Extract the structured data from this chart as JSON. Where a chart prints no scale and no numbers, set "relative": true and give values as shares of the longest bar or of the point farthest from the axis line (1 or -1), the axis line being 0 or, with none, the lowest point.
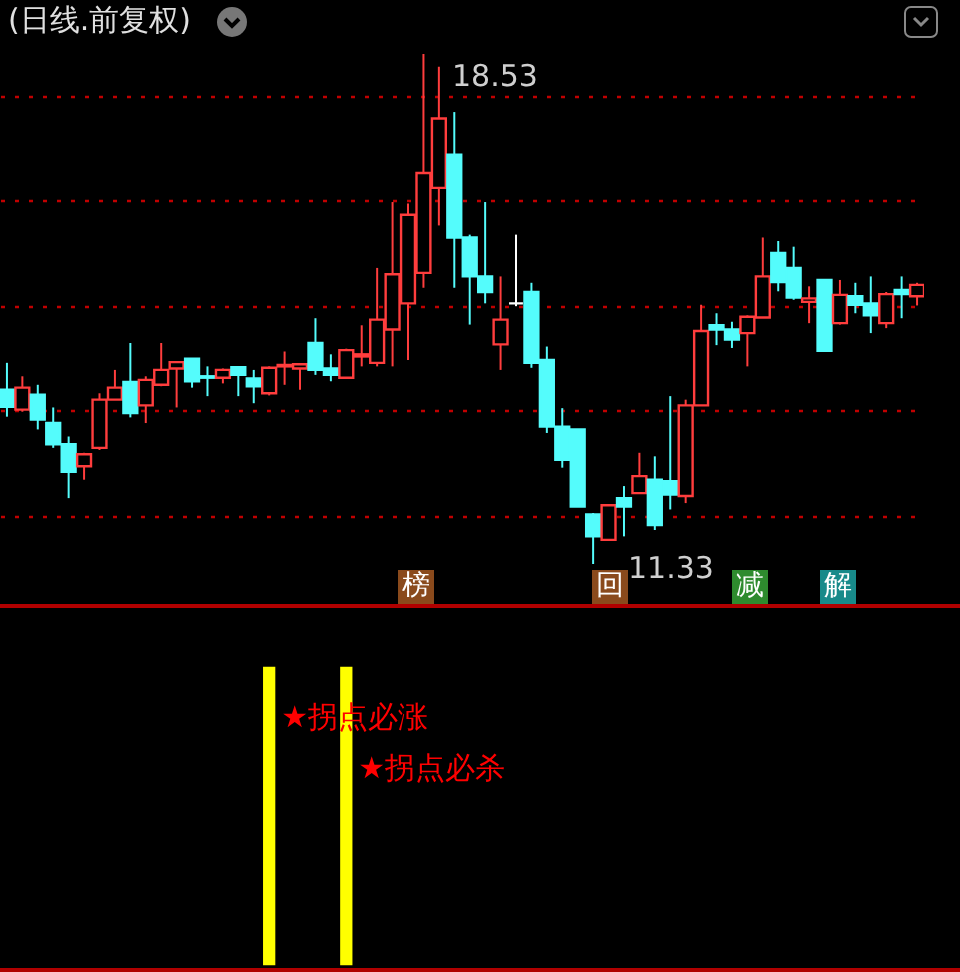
{
  "chart_data": [
    {
      "type": "candlestick",
      "title": "(日线.前复权)",
      "categories": [
        null,
        null,
        null,
        null,
        null,
        null,
        null,
        null,
        null,
        null,
        null,
        null,
        null,
        null,
        null,
        null,
        null,
        null,
        null,
        null,
        null,
        null,
        null,
        null,
        null,
        null,
        null,
        null,
        null,
        null,
        null,
        null,
        null,
        null,
        null,
        null,
        null,
        null,
        null,
        null,
        null,
        null,
        null,
        null,
        null,
        null,
        null,
        null,
        null,
        null,
        null,
        null,
        null,
        null,
        null,
        null,
        null,
        null,
        null,
        null
      ],
      "ohlc": [
        [
          13.79,
          14.17,
          13.41,
          13.55
        ],
        [
          13.51,
          13.98,
          13.48,
          13.82
        ],
        [
          13.72,
          13.86,
          13.23,
          13.37
        ],
        [
          13.32,
          13.54,
          12.97,
          13.02
        ],
        [
          13.02,
          13.13,
          12.26,
          12.63
        ],
        [
          12.71,
          12.9,
          12.52,
          12.88
        ],
        [
          12.97,
          13.74,
          12.94,
          13.65
        ],
        [
          13.65,
          14.07,
          13.65,
          13.82
        ],
        [
          13.9,
          14.45,
          13.4,
          13.46
        ],
        [
          13.57,
          13.98,
          13.32,
          13.93
        ],
        [
          13.86,
          14.45,
          13.84,
          14.07
        ],
        [
          14.09,
          14.19,
          13.54,
          14.18
        ],
        [
          14.23,
          14.23,
          13.82,
          13.91
        ],
        [
          13.98,
          14.12,
          13.7,
          13.96
        ],
        [
          13.96,
          14.09,
          13.88,
          14.07
        ],
        [
          14.11,
          14.12,
          13.7,
          14.0
        ],
        [
          13.95,
          14.07,
          13.6,
          13.84
        ],
        [
          13.74,
          14.12,
          13.71,
          14.1
        ],
        [
          14.12,
          14.33,
          13.86,
          14.14
        ],
        [
          14.09,
          14.15,
          13.79,
          14.15
        ],
        [
          14.45,
          14.8,
          14.0,
          14.07
        ],
        [
          14.09,
          14.29,
          13.91,
          14.0
        ],
        [
          13.96,
          14.37,
          13.96,
          14.35
        ],
        [
          14.26,
          14.7,
          14.12,
          14.29
        ],
        [
          14.17,
          15.51,
          14.12,
          14.78
        ],
        [
          14.64,
          16.44,
          14.12,
          15.42
        ],
        [
          15.01,
          16.42,
          14.21,
          16.26
        ],
        [
          15.44,
          18.53,
          15.23,
          16.85
        ],
        [
          16.64,
          18.35,
          16.11,
          17.62
        ],
        [
          17.11,
          17.71,
          15.23,
          15.94
        ],
        [
          15.94,
          15.98,
          14.71,
          15.39
        ],
        [
          15.39,
          16.44,
          15.01,
          15.17
        ],
        [
          14.43,
          15.39,
          14.07,
          14.78
        ],
        [
          15.01,
          15.98,
          14.97,
          15.01
        ],
        [
          15.17,
          15.3,
          14.1,
          14.17
        ],
        [
          14.21,
          14.4,
          13.18,
          13.27
        ],
        [
          13.27,
          13.53,
          12.69,
          12.8
        ],
        [
          13.23,
          13.23,
          12.14,
          12.14
        ],
        [
          12.03,
          12.05,
          11.33,
          11.72
        ],
        [
          11.67,
          12.16,
          11.67,
          12.16
        ],
        [
          12.26,
          12.43,
          11.72,
          12.14
        ],
        [
          12.33,
          12.9,
          12.33,
          12.57
        ],
        [
          12.52,
          12.85,
          11.81,
          11.88
        ],
        [
          12.5,
          13.7,
          12.1,
          12.31
        ],
        [
          12.29,
          13.65,
          12.19,
          13.57
        ],
        [
          13.57,
          14.99,
          13.57,
          14.62
        ],
        [
          14.7,
          14.87,
          14.42,
          14.64
        ],
        [
          14.64,
          14.75,
          14.38,
          14.5
        ],
        [
          14.59,
          14.84,
          14.12,
          14.82
        ],
        [
          14.81,
          15.94,
          14.81,
          15.39
        ],
        [
          15.72,
          15.89,
          15.18,
          15.31
        ],
        [
          15.51,
          15.81,
          15.06,
          15.09
        ],
        [
          15.03,
          15.25,
          14.73,
          15.08
        ],
        [
          15.34,
          15.34,
          14.34,
          14.34
        ],
        [
          14.73,
          15.34,
          14.71,
          15.13
        ],
        [
          15.11,
          15.3,
          14.87,
          14.99
        ],
        [
          15.01,
          15.39,
          14.59,
          14.84
        ],
        [
          14.73,
          15.17,
          14.66,
          15.14
        ],
        [
          15.2,
          15.39,
          14.8,
          15.14
        ],
        [
          15.11,
          15.3,
          14.98,
          15.27
        ]
      ],
      "colors": [
        "#54fcfc",
        "#ff3d3d",
        "#54fcfc",
        "#54fcfc",
        "#54fcfc",
        "#ff3d3d",
        "#ff3d3d",
        "#ff3d3d",
        "#54fcfc",
        "#ff3d3d",
        "#ff3d3d",
        "#ff3d3d",
        "#54fcfc",
        "#54fcfc",
        "#ff3d3d",
        "#54fcfc",
        "#54fcfc",
        "#ff3d3d",
        "#ff3d3d",
        "#ff3d3d",
        "#54fcfc",
        "#54fcfc",
        "#ff3d3d",
        "#ff3d3d",
        "#ff3d3d",
        "#ff3d3d",
        "#ff3d3d",
        "#ff3d3d",
        "#ff3d3d",
        "#54fcfc",
        "#54fcfc",
        "#54fcfc",
        "#ff3d3d",
        "#ffffff",
        "#54fcfc",
        "#54fcfc",
        "#54fcfc",
        "#54fcfc",
        "#54fcfc",
        "#ff3d3d",
        "#54fcfc",
        "#ff3d3d",
        "#54fcfc",
        "#54fcfc",
        "#ff3d3d",
        "#ff3d3d",
        "#54fcfc",
        "#54fcfc",
        "#ff3d3d",
        "#ff3d3d",
        "#54fcfc",
        "#54fcfc",
        "#ff3d3d",
        "#54fcfc",
        "#ff3d3d",
        "#54fcfc",
        "#54fcfc",
        "#ff3d3d",
        "#54fcfc",
        "#ff3d3d"
      ],
      "yticks": [
        {
          "value": 12.01,
          "label": null
        },
        {
          "value": 13.5,
          "label": null
        },
        {
          "value": 14.97,
          "label": null
        },
        {
          "value": 16.47,
          "label": null
        },
        {
          "value": 17.94,
          "label": null
        }
      ],
      "grid": "y",
      "tick_labels": false,
      "annotations": [
        "18.53",
        "11.33",
        "榜",
        "回",
        "减",
        "解"
      ]
    },
    {
      "type": "bar",
      "relative": true,
      "color": "#ffff00",
      "tick_labels": false,
      "categories": [
        null,
        null,
        null,
        null,
        null,
        null,
        null,
        null,
        null,
        null,
        null,
        null,
        null,
        null,
        null,
        null,
        null,
        null,
        null,
        null,
        null,
        null,
        null,
        null,
        null,
        null,
        null,
        null,
        null,
        null,
        null,
        null,
        null,
        null,
        null,
        null,
        null,
        null,
        null,
        null,
        null,
        null,
        null,
        null,
        null,
        null,
        null,
        null,
        null,
        null,
        null,
        null,
        null,
        null,
        null,
        null,
        null,
        null,
        null,
        null
      ],
      "values": [
        null,
        null,
        null,
        null,
        null,
        null,
        null,
        null,
        null,
        null,
        null,
        null,
        null,
        null,
        null,
        null,
        null,
        1,
        null,
        null,
        null,
        null,
        1,
        null,
        null,
        null,
        null,
        null,
        null,
        null,
        null,
        null,
        null,
        null,
        null,
        null,
        null,
        null,
        null,
        null,
        null,
        null,
        null,
        null,
        null,
        null,
        null,
        null,
        null,
        null,
        null,
        null,
        null,
        null,
        null,
        null,
        null,
        null,
        null,
        null
      ],
      "annotations": [
        "★拐点必涨",
        "★拐点必杀"
      ]
    }
  ]
}
